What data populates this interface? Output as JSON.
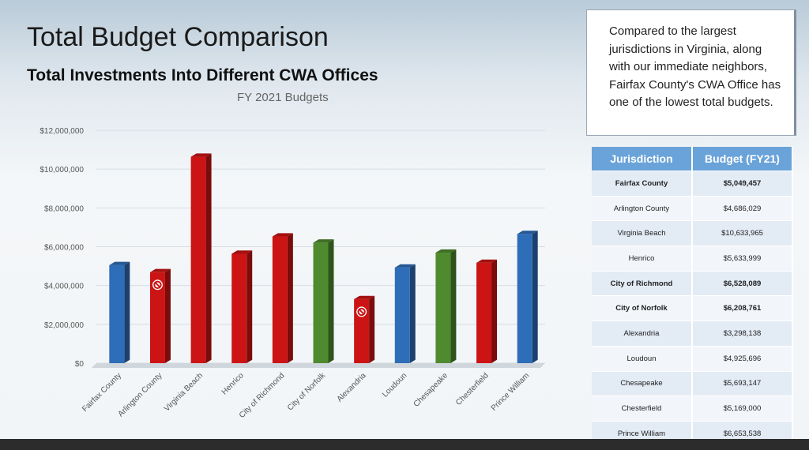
{
  "slide": {
    "title": "Total Budget Comparison",
    "subtitle": "Total Investments Into Different CWA Offices"
  },
  "callout": {
    "text": "Compared to the largest jurisdictions in Virginia, along with our immediate neighbors, Fairfax County's CWA Office has one of the lowest total budgets."
  },
  "table": {
    "headers": [
      "Jurisdiction",
      "Budget (FY21)"
    ],
    "rows": [
      {
        "jurisdiction": "Fairfax County",
        "budget": "$5,049,457"
      },
      {
        "jurisdiction": "Arlington County",
        "budget": "$4,686,029"
      },
      {
        "jurisdiction": "Virginia Beach",
        "budget": "$10,633,965"
      },
      {
        "jurisdiction": "Henrico",
        "budget": "$5,633,999"
      },
      {
        "jurisdiction": "City of Richmond",
        "budget": "$6,528,089"
      },
      {
        "jurisdiction": "City of Norfolk",
        "budget": "$6,208,761"
      },
      {
        "jurisdiction": "Alexandria",
        "budget": "$3,298,138"
      },
      {
        "jurisdiction": "Loudoun",
        "budget": "$4,925,696"
      },
      {
        "jurisdiction": "Chesapeake",
        "budget": "$5,693,147"
      },
      {
        "jurisdiction": "Chesterfield",
        "budget": "$5,169,000"
      },
      {
        "jurisdiction": "Prince William",
        "budget": "$6,653,538"
      }
    ]
  },
  "colors": {
    "blue": "#2e6db8",
    "red": "#cc1414",
    "green": "#4f8a2e",
    "table_header": "#6aa3d9"
  },
  "chart_data": {
    "type": "bar",
    "title": "FY 2021 Budgets",
    "xlabel": "",
    "ylabel": "",
    "ylim": [
      0,
      12000000
    ],
    "yticks": [
      0,
      2000000,
      4000000,
      6000000,
      8000000,
      10000000,
      12000000
    ],
    "ytick_labels": [
      "$0",
      "$2,000,000",
      "$4,000,000",
      "$6,000,000",
      "$8,000,000",
      "$10,000,000",
      "$12,000,000"
    ],
    "grid": true,
    "categories": [
      "Fairfax County",
      "Arlington County",
      "Virginia Beach",
      "Henrico",
      "City of Richmond",
      "City of Norfolk",
      "Alexandria",
      "Loudoun",
      "Chesapeake",
      "Chesterfield",
      "Prince William"
    ],
    "values": [
      5049457,
      4686029,
      10633965,
      5633999,
      6528089,
      6208761,
      3298138,
      4925696,
      5693147,
      5169000,
      6653538
    ],
    "bar_colors": [
      "blue",
      "red",
      "red",
      "red",
      "red",
      "green",
      "red",
      "blue",
      "green",
      "red",
      "blue"
    ],
    "markers": [
      {
        "category": "Arlington County",
        "icon": "no-symbol-icon"
      },
      {
        "category": "Alexandria",
        "icon": "no-symbol-icon"
      }
    ]
  }
}
